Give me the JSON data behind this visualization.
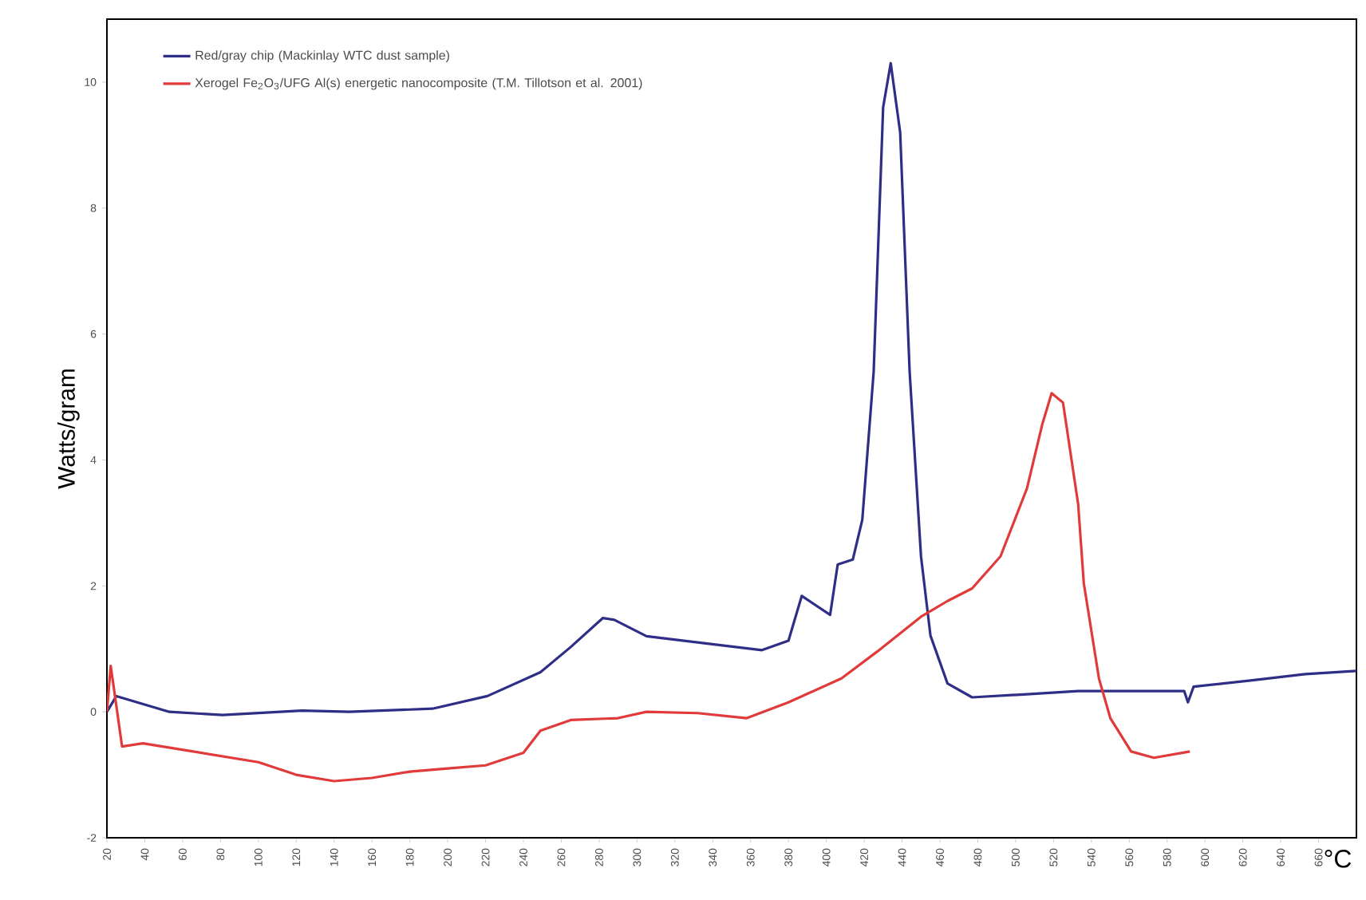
{
  "chart_data": {
    "type": "line",
    "xlabel": "°C",
    "ylabel": "Watts/gram",
    "xlim": [
      20,
      680
    ],
    "ylim": [
      -2,
      11
    ],
    "xticks": [
      20,
      40,
      60,
      80,
      100,
      120,
      140,
      160,
      180,
      200,
      220,
      240,
      260,
      280,
      300,
      320,
      340,
      360,
      380,
      400,
      420,
      440,
      460,
      480,
      500,
      520,
      540,
      560,
      580,
      600,
      620,
      640,
      660
    ],
    "yticks": [
      -2,
      0,
      2,
      4,
      6,
      8,
      10
    ],
    "legend": "top left",
    "grid": false,
    "marker": "none",
    "line_style": "solid",
    "series": [
      {
        "name": "Red/gray chip (Mackinlay WTC dust sample)",
        "color": "#2e2e86",
        "x": [
          20,
          25,
          53,
          81,
          123,
          148,
          192,
          221,
          249,
          265,
          282,
          288,
          305,
          338,
          366,
          380,
          387,
          402,
          406,
          414,
          419,
          425,
          430,
          434,
          439,
          444,
          450,
          455,
          464,
          477,
          506,
          533,
          589,
          591,
          594,
          625,
          653,
          680
        ],
        "values": [
          0,
          0.25,
          0,
          -0.05,
          0.02,
          0,
          0.05,
          0.25,
          0.63,
          1.03,
          1.49,
          1.46,
          1.2,
          1.08,
          0.98,
          1.13,
          1.84,
          1.54,
          2.34,
          2.42,
          3.05,
          5.4,
          9.6,
          10.3,
          9.2,
          5.4,
          2.47,
          1.21,
          0.45,
          0.23,
          0.28,
          0.33,
          0.33,
          0.15,
          0.4,
          0.5,
          0.6,
          0.65
        ]
      },
      {
        "name": "Xerogel Fe$_{2}$O$_{3}$/UFG Al(s) energetic nanocomposite (T.M. Tillotson et al. 2001)",
        "color": "#e03a3a",
        "x": [
          20,
          22,
          28,
          39,
          100,
          120,
          140,
          160,
          180,
          200,
          220,
          240,
          249,
          265,
          290,
          305,
          332,
          358,
          380,
          408,
          427,
          450,
          464,
          477,
          492,
          506,
          514,
          519,
          525,
          533,
          536,
          544,
          550,
          561,
          573,
          592
        ],
        "values": [
          0,
          0.73,
          -0.55,
          -0.5,
          -0.8,
          -1.0,
          -1.1,
          -1.05,
          -0.95,
          -0.9,
          -0.85,
          -0.65,
          -0.3,
          -0.13,
          -0.1,
          0,
          -0.02,
          -0.1,
          0.15,
          0.53,
          0.96,
          1.51,
          1.76,
          1.96,
          2.47,
          3.55,
          4.56,
          5.06,
          4.91,
          3.3,
          2.04,
          0.53,
          -0.1,
          -0.63,
          -0.73,
          -0.63
        ]
      }
    ]
  }
}
